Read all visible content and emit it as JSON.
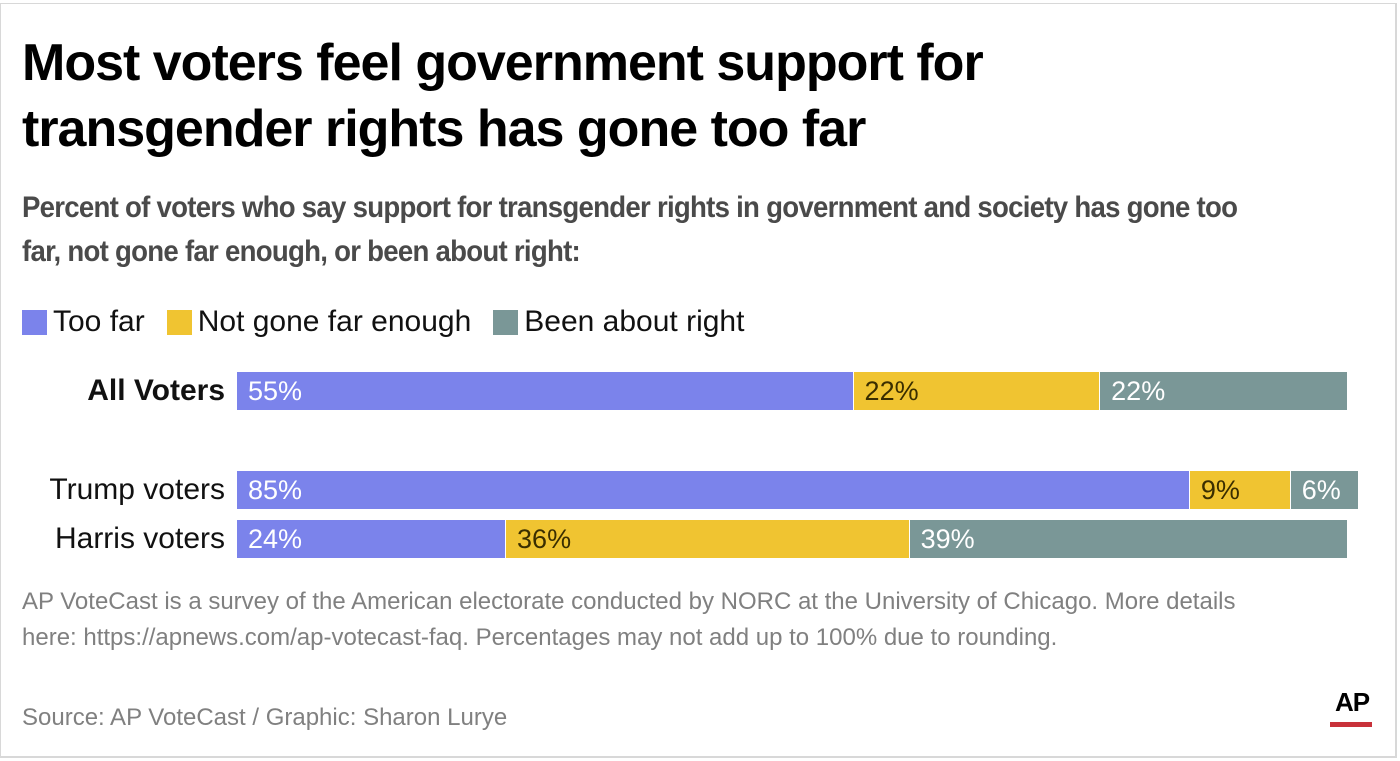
{
  "chart_data": {
    "type": "bar",
    "orientation": "horizontal",
    "stacked": true,
    "title": "Most voters feel government support for transgender rights has gone too far",
    "subtitle": "Percent of voters who say support for transgender rights in government and society has gone too far, not gone far enough, or been about right:",
    "xlabel": "",
    "ylabel": "",
    "xlim": [
      0,
      100
    ],
    "grid": false,
    "legend_position": "top-left",
    "categories": [
      "All Voters",
      "Trump voters",
      "Harris voters"
    ],
    "category_bold": [
      true,
      false,
      false
    ],
    "series": [
      {
        "name": "Too far",
        "color": "#7b83eb",
        "label_color": "#ffffff",
        "values": [
          55,
          85,
          24
        ]
      },
      {
        "name": "Not gone far enough",
        "color": "#f0c431",
        "label_color": "#3a2e00",
        "values": [
          22,
          9,
          36
        ]
      },
      {
        "name": "Been about right",
        "color": "#7a9797",
        "label_color": "#ffffff",
        "values": [
          22,
          6,
          39
        ]
      }
    ],
    "value_suffix": "%",
    "note": "AP VoteCast is a survey of the American electorate conducted by NORC at the University of Chicago. More details here: https://apnews.com/ap-votecast-faq. Percentages may not add up to 100% due to rounding.",
    "source": "Source: AP VoteCast / Graphic: Sharon Lurye"
  },
  "logo": {
    "text": "AP",
    "accent_color": "#c8313a"
  }
}
